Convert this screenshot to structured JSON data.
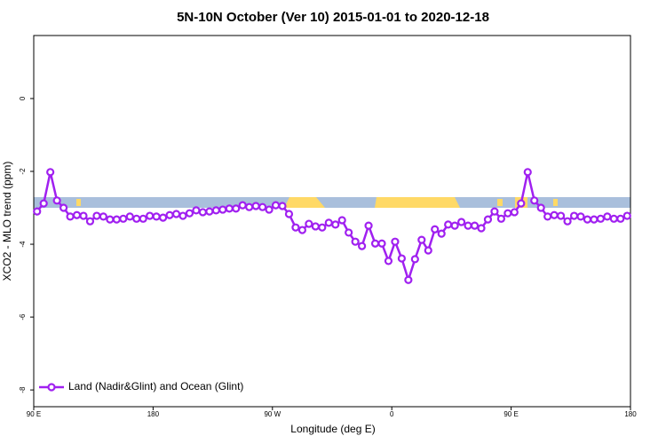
{
  "chart_data": {
    "type": "line",
    "title": "5N-10N October (Ver 10)   2015-01-01 to 2020-12-18",
    "x_label": "Longitude (deg E)",
    "y_label": "XCO2 - MLO trend (ppm)",
    "x": [
      92.5,
      97.5,
      102.5,
      107.5,
      112.5,
      117.5,
      122.5,
      127.5,
      132.5,
      137.5,
      142.5,
      147.5,
      152.5,
      157.5,
      162.5,
      167.5,
      172.5,
      177.5,
      182.5,
      187.5,
      192.5,
      197.5,
      202.5,
      207.5,
      212.5,
      217.5,
      222.5,
      227.5,
      232.5,
      237.5,
      242.5,
      247.5,
      252.5,
      257.5,
      262.5,
      267.5,
      272.5,
      277.5,
      282.5,
      287.5,
      292.5,
      297.5,
      302.5,
      307.5,
      312.5,
      317.5,
      322.5,
      327.5,
      332.5,
      337.5,
      342.5,
      347.5,
      352.5,
      357.5,
      362.5,
      367.5,
      372.5,
      377.5,
      382.5,
      387.5,
      392.5,
      397.5,
      402.5,
      407.5,
      412.5,
      417.5,
      422.5,
      427.5,
      432.5,
      437.5,
      442.5,
      447.5,
      452.5,
      457.5,
      462.5,
      467.5,
      472.5,
      477.5,
      482.5,
      487.5,
      492.5,
      497.5,
      502.5,
      507.5,
      512.5,
      517.5,
      522.5,
      527.5,
      532.5,
      537.5
    ],
    "series": [
      {
        "name": "Land (Nadir&Glint) and Ocean (Glint)",
        "color": "#a020f0",
        "values": [
          -3.1,
          -2.88,
          -2.02,
          -2.8,
          -3.0,
          -3.24,
          -3.2,
          -3.22,
          -3.37,
          -3.22,
          -3.24,
          -3.32,
          -3.32,
          -3.3,
          -3.24,
          -3.3,
          -3.3,
          -3.22,
          -3.24,
          -3.27,
          -3.2,
          -3.17,
          -3.22,
          -3.15,
          -3.07,
          -3.12,
          -3.1,
          -3.07,
          -3.05,
          -3.02,
          -3.02,
          -2.93,
          -2.98,
          -2.95,
          -2.98,
          -3.05,
          -2.93,
          -2.95,
          -3.17,
          -3.54,
          -3.61,
          -3.44,
          -3.51,
          -3.54,
          -3.41,
          -3.46,
          -3.34,
          -3.68,
          -3.93,
          -4.05,
          -3.49,
          -3.98,
          -3.98,
          -4.46,
          -3.93,
          -4.39,
          -4.98,
          -4.41,
          -3.88,
          -4.17,
          -3.59,
          -3.71,
          -3.46,
          -3.49,
          -3.39,
          -3.49,
          -3.49,
          -3.56,
          -3.32,
          -3.1,
          -3.3,
          -3.15,
          -3.12,
          -2.88,
          -2.02,
          -2.8,
          -3.0,
          -3.24,
          -3.2,
          -3.22,
          -3.37,
          -3.22,
          -3.24,
          -3.32,
          -3.32,
          -3.3,
          -3.24,
          -3.3,
          -3.3,
          -3.22
        ]
      }
    ],
    "xlim": [
      90,
      540
    ],
    "xticks": [
      {
        "value": 90,
        "label": "90 E"
      },
      {
        "value": 180,
        "label": "180"
      },
      {
        "value": 270,
        "label": "90 W"
      },
      {
        "value": 360,
        "label": "0"
      },
      {
        "value": 450,
        "label": "90 E"
      },
      {
        "value": 540,
        "label": "180"
      }
    ],
    "ylim": [
      -8.46,
      1.73
    ],
    "yticks": [
      -8,
      -6,
      -4,
      -2,
      0
    ],
    "legend": "bottom-left"
  }
}
